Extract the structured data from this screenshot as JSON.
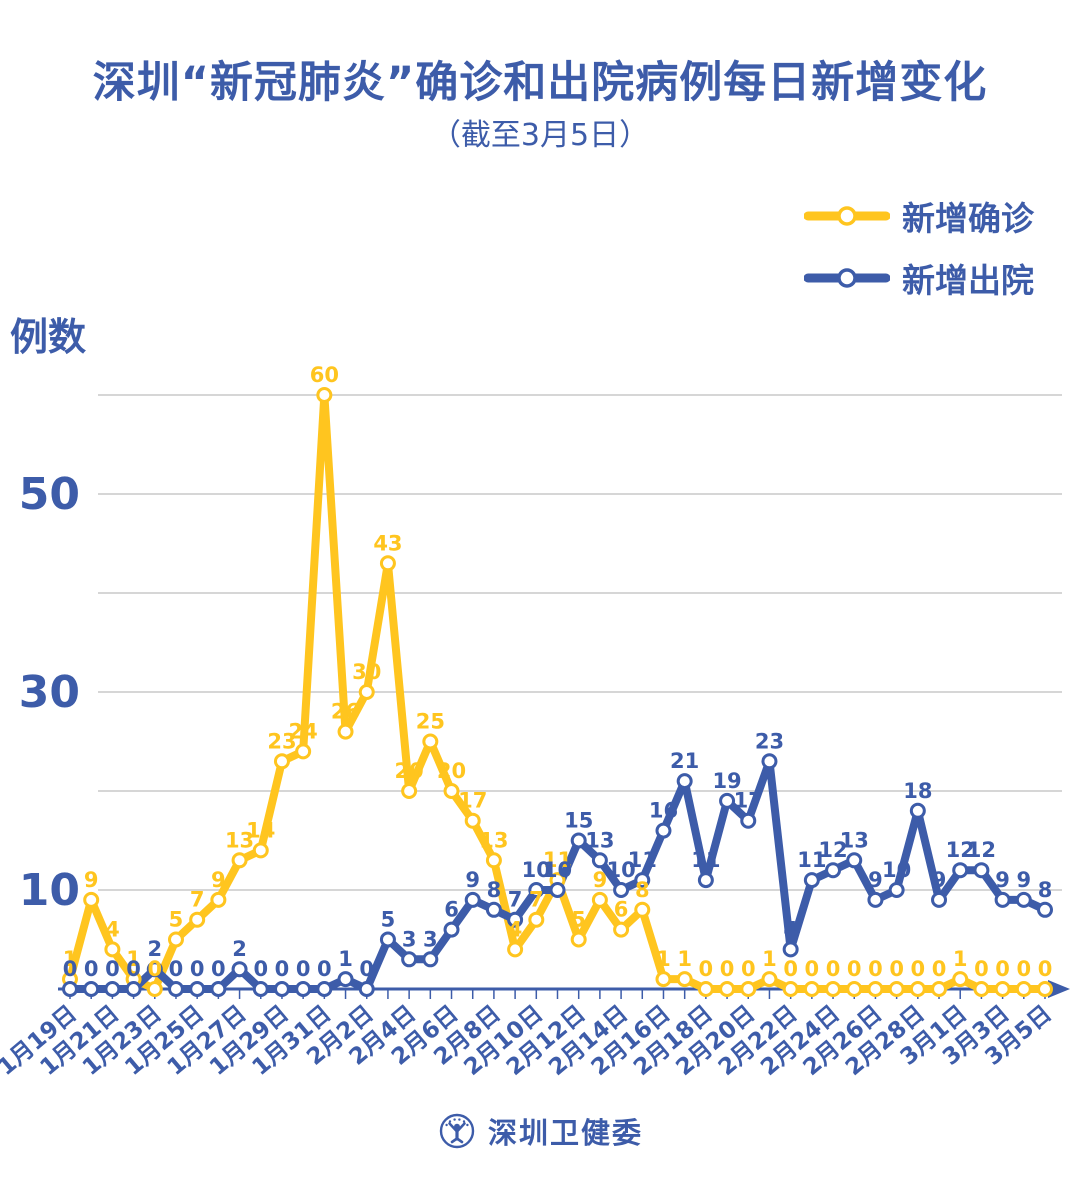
{
  "title": "深圳“新冠肺炎”确诊和出院病例每日新增变化",
  "subtitle": "（截至3月5日）",
  "legend": [
    {
      "label": "新增确诊",
      "color": "#FFC51F"
    },
    {
      "label": "新增出院",
      "color": "#3D5CA9"
    }
  ],
  "colors": {
    "text_blue": "#3D5CA9",
    "grid": "#C9C9C9",
    "axis": "#3D5CA9",
    "background": "#FFFFFF"
  },
  "y_axis": {
    "label": "例数",
    "ticks": [
      10,
      30,
      50
    ],
    "gridlines": [
      10,
      20,
      30,
      40,
      50,
      60
    ]
  },
  "x_axis": {
    "label_every_days": 2,
    "first_label": "1月19日",
    "last_label": "3月5日"
  },
  "footer": {
    "logo": "shenzhen-health-commission-logo",
    "text": "深圳卫健委"
  },
  "chart_data": {
    "type": "line",
    "title": "深圳“新冠肺炎”确诊和出院病例每日新增变化（截至3月5日）",
    "xlabel": "",
    "ylabel": "例数",
    "ylim": [
      0,
      62
    ],
    "grid": true,
    "legend_position": "top-right",
    "marker": "open-circle",
    "x": [
      "1月19日",
      "1月20日",
      "1月21日",
      "1月22日",
      "1月23日",
      "1月24日",
      "1月25日",
      "1月26日",
      "1月27日",
      "1月28日",
      "1月29日",
      "1月30日",
      "1月31日",
      "2月1日",
      "2月2日",
      "2月3日",
      "2月4日",
      "2月5日",
      "2月6日",
      "2月7日",
      "2月8日",
      "2月9日",
      "2月10日",
      "2月11日",
      "2月12日",
      "2月13日",
      "2月14日",
      "2月15日",
      "2月16日",
      "2月17日",
      "2月18日",
      "2月19日",
      "2月20日",
      "2月21日",
      "2月22日",
      "2月23日",
      "2月24日",
      "2月25日",
      "2月26日",
      "2月27日",
      "2月28日",
      "2月29日",
      "3月1日",
      "3月2日",
      "3月3日",
      "3月4日",
      "3月5日"
    ],
    "series": [
      {
        "id": "confirmed",
        "name": "新增确诊",
        "color": "#FFC51F",
        "values": [
          1,
          9,
          4,
          1,
          0,
          5,
          7,
          9,
          13,
          14,
          23,
          24,
          60,
          26,
          30,
          43,
          20,
          25,
          20,
          17,
          13,
          4,
          7,
          11,
          5,
          9,
          6,
          8,
          1,
          1,
          0,
          0,
          0,
          1,
          0,
          0,
          0,
          0,
          0,
          0,
          0,
          0,
          1,
          0,
          0,
          0,
          0
        ]
      },
      {
        "id": "discharged",
        "name": "新增出院",
        "color": "#3D5CA9",
        "values": [
          0,
          0,
          0,
          0,
          2,
          0,
          0,
          0,
          2,
          0,
          0,
          0,
          0,
          1,
          0,
          5,
          3,
          3,
          6,
          9,
          8,
          7,
          10,
          10,
          15,
          13,
          10,
          11,
          16,
          21,
          11,
          19,
          17,
          23,
          4,
          11,
          12,
          13,
          9,
          10,
          18,
          9,
          12,
          12,
          9,
          9,
          8
        ]
      }
    ]
  }
}
